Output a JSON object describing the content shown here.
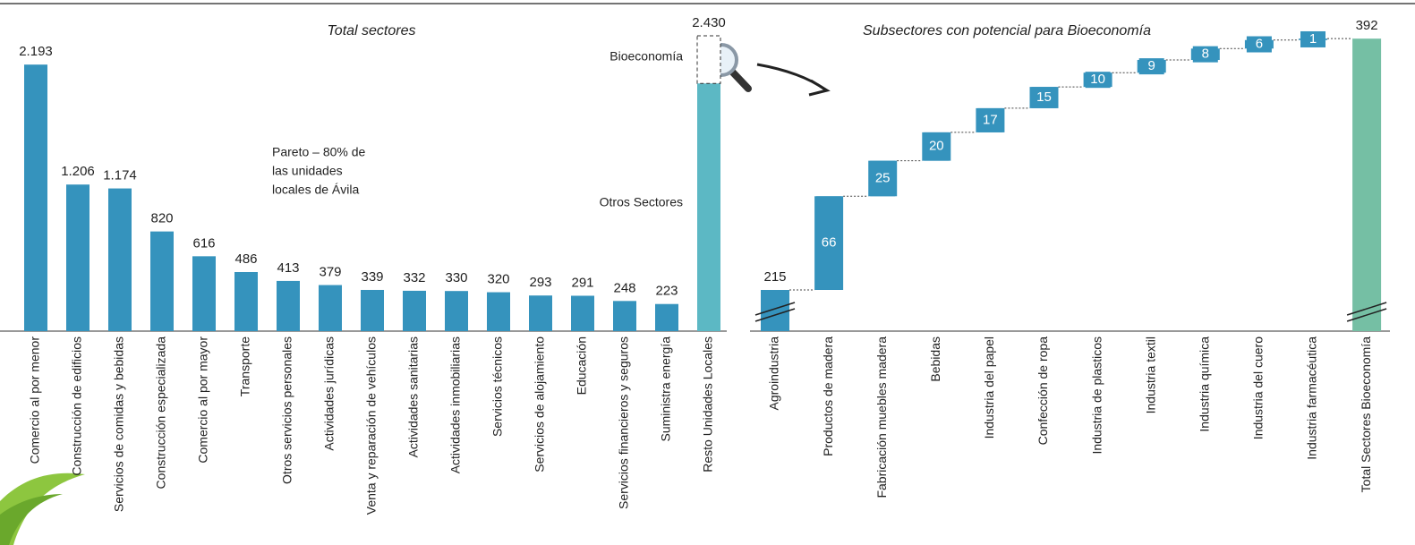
{
  "chart_data": [
    {
      "type": "bar",
      "title": "Total sectores",
      "categories": [
        "Comercio al por menor",
        "Construcción de edificios",
        "Servicios de comidas y bebidas",
        "Construcción especializada",
        "Comercio al por mayor",
        "Transporte",
        "Otros servicios personales",
        "Actividades jurídicas",
        "Venta y reparación de vehículos",
        "Actividades sanitarias",
        "Actividades inmobiliarias",
        "Servicios técnicos",
        "Servicios de alojamiento",
        "Educación",
        "Servicios financieros y seguros",
        "Suministra energía",
        "Resto Unidades Locales"
      ],
      "values": [
        2193,
        1206,
        1174,
        820,
        616,
        486,
        413,
        379,
        339,
        332,
        330,
        320,
        293,
        291,
        248,
        223,
        2430
      ],
      "value_labels": [
        "2.193",
        "1.206",
        "1.174",
        "820",
        "616",
        "486",
        "413",
        "379",
        "339",
        "332",
        "330",
        "320",
        "293",
        "291",
        "248",
        "223",
        "2.430"
      ],
      "colors": [
        "#3593bd",
        "#3593bd",
        "#3593bd",
        "#3593bd",
        "#3593bd",
        "#3593bd",
        "#3593bd",
        "#3593bd",
        "#3593bd",
        "#3593bd",
        "#3593bd",
        "#3593bd",
        "#3593bd",
        "#3593bd",
        "#3593bd",
        "#3593bd",
        "#5cb8c4"
      ],
      "ylim": [
        0,
        2430
      ],
      "annotations": [
        "Bioeconomía",
        "Otros Sectores"
      ],
      "note_lines": [
        "Pareto – 80% de",
        "las unidades",
        "locales de Ávila"
      ]
    },
    {
      "type": "waterfall",
      "title": "Subsectores con potencial para Bioeconomía",
      "categories": [
        "Agroindustria",
        "Productos de madera",
        "Fabricación muebles madera",
        "Bebidas",
        "Industria del papel",
        "Confección de ropa",
        "Industria de plasticos",
        "Industria textil",
        "Industria química",
        "Industria del cuero",
        "Industria farmacéutica",
        "Total Sectores Bioeconomía"
      ],
      "values": [
        215,
        66,
        25,
        20,
        17,
        15,
        10,
        9,
        8,
        6,
        1,
        392
      ],
      "is_total": [
        false,
        false,
        false,
        false,
        false,
        false,
        false,
        false,
        false,
        false,
        false,
        true
      ],
      "color": "#3593bd",
      "total_color": "#75bfa4",
      "ylim": [
        186,
        394
      ],
      "axis_break": true
    }
  ]
}
